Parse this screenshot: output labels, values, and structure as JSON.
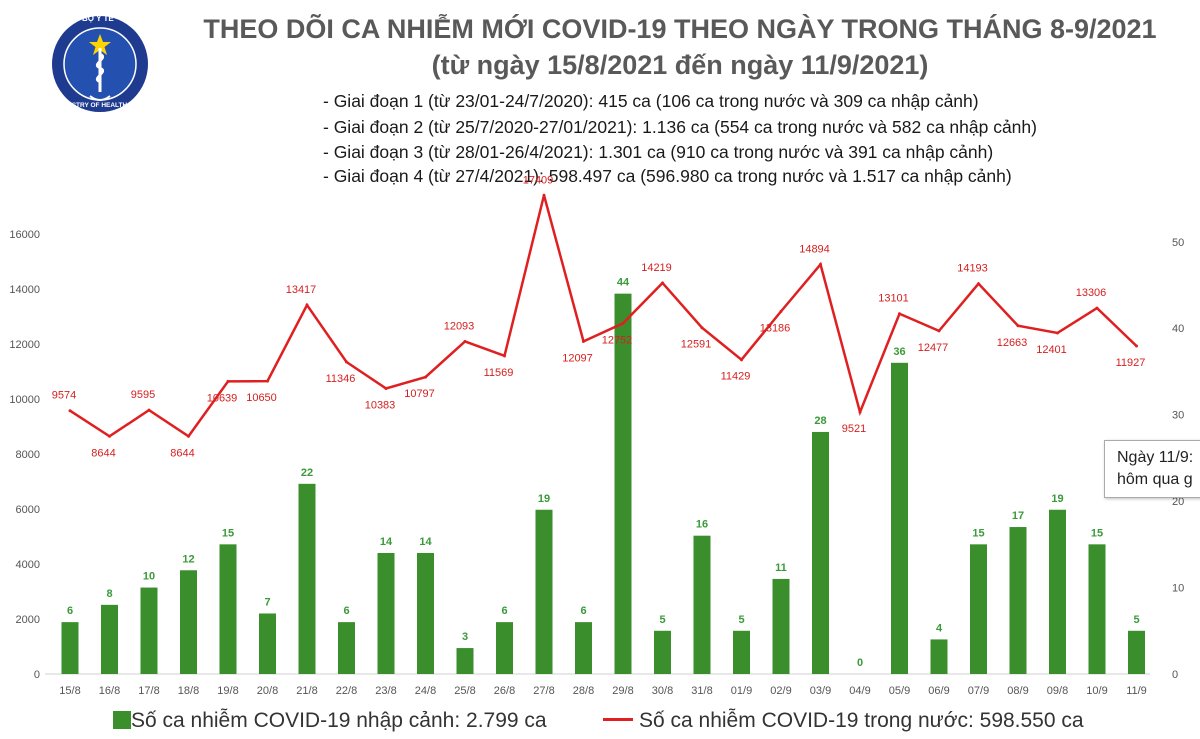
{
  "logo": {
    "name": "ministry-of-health-logo",
    "text_top": "BỘ Y TẾ",
    "text_bottom": "MINISTRY OF HEALTH",
    "colors": {
      "ring": "#1f3b8f",
      "inner": "#2450b0",
      "star": "#ffd400",
      "flag": "#d8232a"
    }
  },
  "title_line1": "THEO DÕI CA NHIỄM MỚI COVID-19 THEO NGÀY TRONG THÁNG 8-9/2021",
  "title_line2": "(từ ngày 15/8/2021 đến ngày 11/9/2021)",
  "periods": [
    "- Giai đoạn 1 (từ 23/01-24/7/2020): 415 ca (106 ca trong nước và 309 ca nhập cảnh)",
    "- Giai đoạn 2 (từ 25/7/2020-27/01/2021): 1.136 ca (554 ca trong nước và 582 ca nhập cảnh)",
    "- Giai đoạn 3 (từ 28/01-26/4/2021): 1.301 ca (910 ca trong nước và 391 ca nhập cảnh)",
    "- Giai đoạn 4 (từ 27/4/2021): 598.497 ca (596.980 ca trong nước và 1.517 ca nhập cảnh)"
  ],
  "note": {
    "line1": "Ngày 11/9:",
    "line2": "hôm qua g"
  },
  "legend": {
    "bar_label": "Số ca nhiễm COVID-19 nhập cảnh: 2.799 ca",
    "line_label": "Số ca nhiễm COVID-19 trong nước: 598.550 ca"
  },
  "colors": {
    "bar": "#3a8e2c",
    "line": "#e02020",
    "bar_label": "#3a9a3a",
    "line_label": "#d62020"
  },
  "chart_data": {
    "type": "bar+line",
    "categories": [
      "15/8",
      "16/8",
      "17/8",
      "18/8",
      "19/8",
      "20/8",
      "21/8",
      "22/8",
      "23/8",
      "24/8",
      "25/8",
      "26/8",
      "27/8",
      "28/8",
      "29/8",
      "30/8",
      "31/8",
      "01/9",
      "02/9",
      "03/9",
      "04/9",
      "05/9",
      "06/9",
      "07/9",
      "08/9",
      "09/8",
      "10/9",
      "11/9"
    ],
    "series": [
      {
        "name": "Số ca nhiễm COVID-19 nhập cảnh: 2.799 ca",
        "type": "bar",
        "axis": "right",
        "values": [
          6,
          8,
          10,
          12,
          15,
          7,
          22,
          6,
          14,
          14,
          3,
          6,
          19,
          6,
          44,
          5,
          16,
          5,
          11,
          28,
          0,
          36,
          4,
          15,
          17,
          19,
          15,
          5
        ]
      },
      {
        "name": "Số ca nhiễm COVID-19 trong nước: 598.550 ca",
        "type": "line",
        "axis": "left",
        "values": [
          9574,
          8644,
          9595,
          8644,
          10639,
          10650,
          13417,
          11346,
          10383,
          10797,
          12093,
          11569,
          17409,
          12097,
          12752,
          14219,
          12591,
          11429,
          13186,
          14894,
          9521,
          13101,
          12477,
          14193,
          12663,
          12401,
          13306,
          11927
        ]
      }
    ],
    "y_left": {
      "ticks": [
        0,
        2000,
        4000,
        6000,
        8000,
        10000,
        12000,
        14000,
        16000
      ],
      "range": [
        0,
        16000
      ]
    },
    "y_right": {
      "ticks": [
        0,
        10,
        20,
        30,
        40,
        50
      ],
      "range": [
        0,
        50.9
      ]
    },
    "grid": false,
    "legend_position": "bottom"
  }
}
